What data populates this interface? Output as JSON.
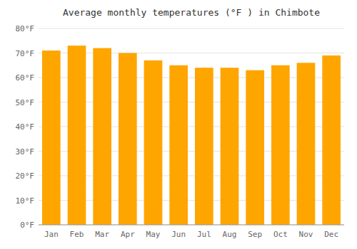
{
  "chart_data": {
    "type": "bar",
    "title": "Average monthly temperatures (°F ) in Chimbote",
    "categories": [
      "Jan",
      "Feb",
      "Mar",
      "Apr",
      "May",
      "Jun",
      "Jul",
      "Aug",
      "Sep",
      "Oct",
      "Nov",
      "Dec"
    ],
    "values": [
      71,
      73,
      72,
      70,
      67,
      65,
      64,
      64,
      63,
      65,
      66,
      69
    ],
    "color": "#FFA500",
    "ylim": [
      0,
      80
    ],
    "yticks": [
      {
        "value": 0,
        "label": "0°F"
      },
      {
        "value": 10,
        "label": "10°F"
      },
      {
        "value": 20,
        "label": "20°F"
      },
      {
        "value": 30,
        "label": "30°F"
      },
      {
        "value": 40,
        "label": "40°F"
      },
      {
        "value": 50,
        "label": "50°F"
      },
      {
        "value": 60,
        "label": "60°F"
      },
      {
        "value": 70,
        "label": "70°F"
      },
      {
        "value": 80,
        "label": "80°F"
      }
    ],
    "grid": true
  }
}
